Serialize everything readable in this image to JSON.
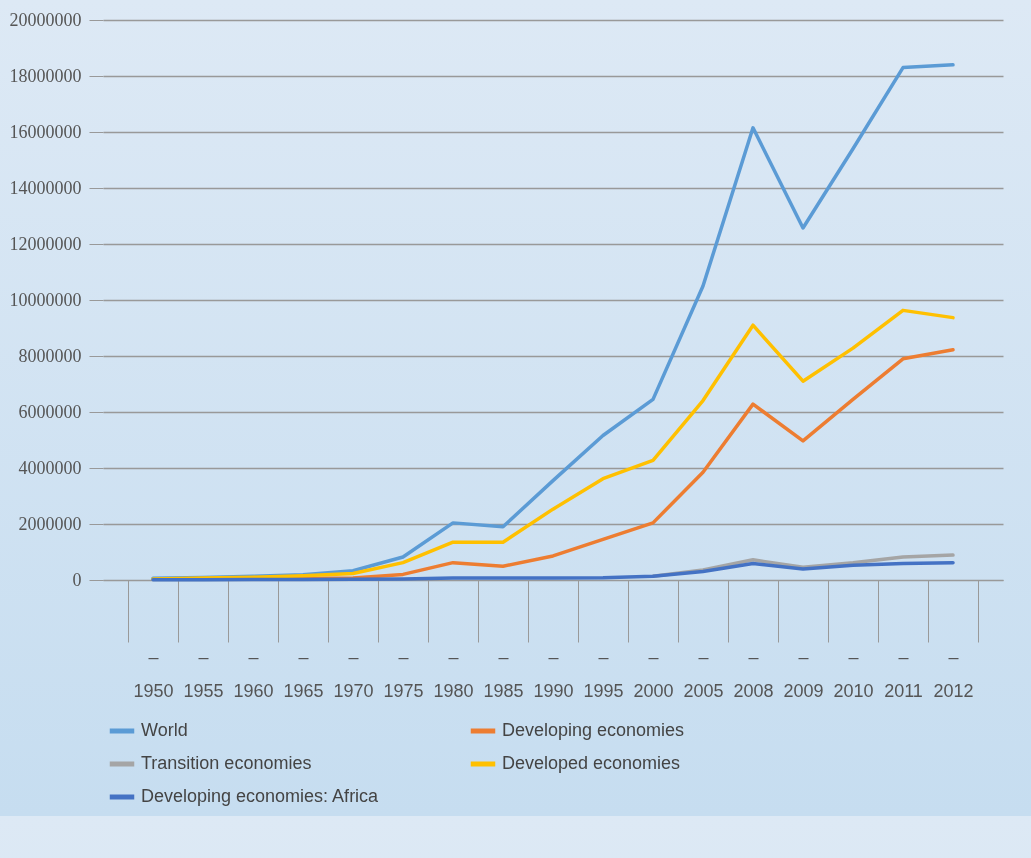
{
  "chart_data": {
    "type": "line",
    "categories": [
      "– 1950",
      "– 1955",
      "– 1960",
      "– 1965",
      "– 1970",
      "– 1975",
      "– 1980",
      "– 1985",
      "– 1990",
      "– 1995",
      "– 2000",
      "– 2005",
      "– 2008",
      "– 2009",
      "– 2010",
      "– 2011",
      "– 2012"
    ],
    "series": [
      {
        "name": "World",
        "color": "#5b9bd5",
        "values": [
          60000,
          90000,
          130000,
          190000,
          330000,
          820000,
          2040000,
          1900000,
          3550000,
          5160000,
          6450000,
          10500000,
          16150000,
          12570000,
          15400000,
          18300000,
          18400000
        ]
      },
      {
        "name": "Developing economies",
        "color": "#ed7d31",
        "values": [
          null,
          null,
          40000,
          50000,
          70000,
          200000,
          620000,
          490000,
          860000,
          1450000,
          2040000,
          3850000,
          6280000,
          4970000,
          6450000,
          7900000,
          8220000
        ]
      },
      {
        "name": "Transition economies",
        "color": "#a5a5a5",
        "values": [
          null,
          null,
          null,
          null,
          null,
          null,
          null,
          null,
          null,
          null,
          130000,
          360000,
          720000,
          460000,
          620000,
          820000,
          890000
        ]
      },
      {
        "name": "Developed economies",
        "color": "#ffc000",
        "values": [
          40000,
          70000,
          100000,
          150000,
          230000,
          620000,
          1350000,
          1350000,
          2530000,
          3620000,
          4270000,
          6410000,
          9100000,
          7100000,
          8280000,
          9630000,
          9370000
        ]
      },
      {
        "name": "Developing economies: Africa",
        "color": "#4472c4",
        "values": [
          10000,
          10000,
          20000,
          20000,
          30000,
          40000,
          70000,
          70000,
          70000,
          80000,
          130000,
          300000,
          590000,
          390000,
          530000,
          590000,
          620000
        ]
      }
    ],
    "ylim": [
      0,
      20000000
    ],
    "yticks": [
      0,
      2000000,
      4000000,
      6000000,
      8000000,
      10000000,
      12000000,
      14000000,
      16000000,
      18000000,
      20000000
    ],
    "grid": "y",
    "legend": "bottom",
    "marker": "none",
    "line_style": "solid"
  }
}
